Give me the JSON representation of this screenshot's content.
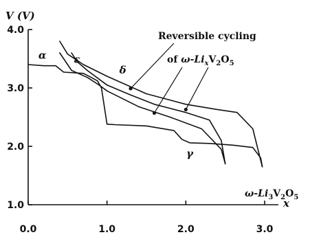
{
  "chart_data": {
    "type": "line",
    "title": "",
    "xlabel": "x",
    "ylabel": "V (V)",
    "xlim": [
      0,
      3.0
    ],
    "ylim": [
      1.0,
      4.0
    ],
    "grid": false,
    "x_ticks": [
      "0.0",
      "1.0",
      "2.0",
      "3.0"
    ],
    "y_ticks": [
      "1.0",
      "2.0",
      "3.0",
      "4.0"
    ],
    "series": [
      {
        "x": [
          0.0,
          0.2,
          0.35,
          0.45,
          0.7,
          0.8,
          0.88,
          0.93,
          1.0,
          1.1,
          1.5,
          1.85,
          1.95,
          2.05,
          2.3,
          2.6,
          2.85,
          2.95,
          2.97
        ],
        "y": [
          3.4,
          3.38,
          3.38,
          3.27,
          3.25,
          3.18,
          3.12,
          3.0,
          2.38,
          2.37,
          2.35,
          2.27,
          2.12,
          2.06,
          2.05,
          2.02,
          1.98,
          1.8,
          1.65
        ]
      },
      {
        "x": [
          2.97,
          2.85,
          2.65,
          2.4,
          2.0,
          1.5,
          1.0,
          0.7,
          0.5,
          0.4
        ],
        "y": [
          1.65,
          2.3,
          2.58,
          2.63,
          2.72,
          2.9,
          3.2,
          3.4,
          3.58,
          3.8
        ]
      },
      {
        "x": [
          0.4,
          0.55,
          0.75,
          0.9,
          1.0,
          1.4,
          1.8,
          2.2,
          2.45,
          2.48,
          2.5
        ],
        "y": [
          3.6,
          3.3,
          3.18,
          3.05,
          2.95,
          2.68,
          2.5,
          2.3,
          1.95,
          1.8,
          1.7
        ]
      },
      {
        "x": [
          2.5,
          2.45,
          2.3,
          2.0,
          1.6,
          1.3,
          1.0,
          0.75,
          0.62,
          0.55
        ],
        "y": [
          1.7,
          2.1,
          2.45,
          2.58,
          2.72,
          2.88,
          3.05,
          3.3,
          3.45,
          3.6
        ]
      }
    ],
    "phase_labels": [
      {
        "text": "α",
        "x": 0.18,
        "y": 3.5
      },
      {
        "text": "ε",
        "x": 0.62,
        "y": 3.43
      },
      {
        "text": "δ",
        "x": 1.2,
        "y": 3.25
      },
      {
        "text": "γ",
        "x": 2.05,
        "y": 1.82
      }
    ],
    "annotation": {
      "line1": "Reversible cycling",
      "line2_prefix": "of ",
      "line2_formula": "ω-Li",
      "line2_sub1": "x",
      "line2_mid": "V",
      "line2_sub2": "2",
      "line2_o": "O",
      "line2_sub3": "5",
      "pointers": [
        {
          "x": 1.3,
          "y": 2.99
        },
        {
          "x": 1.6,
          "y": 2.57
        },
        {
          "x": 2.0,
          "y": 2.63
        }
      ]
    },
    "end_label": {
      "prefix": "ω-Li",
      "sub1": "3",
      "mid": "V",
      "sub2": "2",
      "o": "O",
      "sub3": "5"
    }
  }
}
